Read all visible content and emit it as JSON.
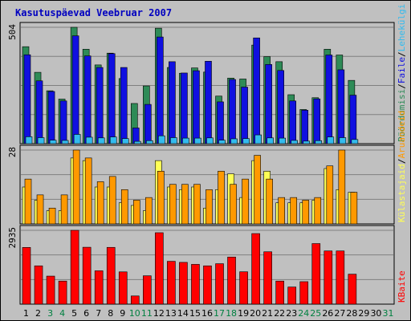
{
  "chart_title": "Kasutuspäevad Veebruar 2007",
  "colors": {
    "background": "#c0c0c0",
    "panel_border": "#000000",
    "grid": "#808080",
    "hits": "#2e8b57",
    "files": "#1010e0",
    "pages": "#33bbee",
    "visits": "#ff9900",
    "sites": "#ffff55",
    "kbytes": "#ff0000",
    "title": "#0000c0",
    "day_default": "#000000",
    "day_weekend": "#008040"
  },
  "chart_data": [
    {
      "type": "bar",
      "categories": [
        "1",
        "2",
        "3",
        "4",
        "5",
        "6",
        "7",
        "8",
        "9",
        "10",
        "11",
        "12",
        "13",
        "14",
        "15",
        "16",
        "17",
        "18",
        "19",
        "20",
        "21",
        "22",
        "23",
        "24",
        "25",
        "26",
        "27",
        "28",
        "29",
        "30",
        "31"
      ],
      "weekend_days": [
        "3",
        "4",
        "10",
        "11",
        "17",
        "18",
        "24",
        "25",
        "31"
      ],
      "ymax_label": "504",
      "ylim": [
        0,
        504
      ],
      "series": [
        {
          "name": "Pöördumisi",
          "color": "#2e8b57",
          "values": [
            420,
            309,
            229,
            193,
            504,
            409,
            341,
            392,
            282,
            174,
            250,
            500,
            330,
            305,
            328,
            310,
            206,
            284,
            280,
            427,
            377,
            355,
            212,
            148,
            199,
            409,
            384,
            274,
            0,
            0,
            0
          ]
        },
        {
          "name": "Faile",
          "color": "#1010e0",
          "values": [
            385,
            272,
            226,
            185,
            467,
            380,
            330,
            390,
            330,
            68,
            170,
            462,
            355,
            306,
            316,
            357,
            181,
            278,
            245,
            458,
            343,
            317,
            185,
            145,
            194,
            384,
            320,
            210,
            0,
            0,
            0
          ]
        },
        {
          "name": "Lehekülgi",
          "color": "#33bbee",
          "values": [
            30,
            26,
            15,
            14,
            40,
            28,
            25,
            29,
            22,
            10,
            13,
            34,
            26,
            24,
            24,
            25,
            15,
            21,
            22,
            38,
            25,
            24,
            14,
            11,
            13,
            29,
            26,
            18,
            0,
            0,
            0
          ]
        }
      ]
    },
    {
      "type": "bar",
      "categories": [
        "1",
        "2",
        "3",
        "4",
        "5",
        "6",
        "7",
        "8",
        "9",
        "10",
        "11",
        "12",
        "13",
        "14",
        "15",
        "16",
        "17",
        "18",
        "19",
        "20",
        "21",
        "22",
        "23",
        "24",
        "25",
        "26",
        "27",
        "28",
        "29",
        "30",
        "31"
      ],
      "ymax_label": "28",
      "ylim": [
        0,
        28
      ],
      "series": [
        {
          "name": "Külastajaid",
          "color": "#ffff55",
          "values": [
            14,
            9,
            5,
            5,
            25,
            24,
            14,
            14,
            8,
            7,
            5,
            24,
            14,
            13,
            14,
            6,
            13,
            19,
            10,
            24,
            20,
            8,
            8,
            8,
            9,
            21,
            13,
            12,
            0,
            0,
            0
          ]
        },
        {
          "name": "Aruandeid",
          "color": "#ff9900",
          "values": [
            17,
            11,
            6,
            11,
            28,
            25,
            16,
            18,
            13,
            9,
            10,
            20,
            15,
            15,
            15,
            13,
            20,
            15,
            17,
            26,
            17,
            10,
            10,
            9,
            10,
            22,
            28,
            12,
            0,
            0,
            0
          ]
        }
      ]
    },
    {
      "type": "bar",
      "categories": [
        "1",
        "2",
        "3",
        "4",
        "5",
        "6",
        "7",
        "8",
        "9",
        "10",
        "11",
        "12",
        "13",
        "14",
        "15",
        "16",
        "17",
        "18",
        "19",
        "20",
        "21",
        "22",
        "23",
        "24",
        "25",
        "26",
        "27",
        "28",
        "29",
        "30",
        "31"
      ],
      "ymax_label": "2935",
      "ylim": [
        0,
        2935
      ],
      "series": [
        {
          "name": "KBaite",
          "color": "#ff0000",
          "values": [
            2255,
            1523,
            1115,
            918,
            2935,
            2262,
            1326,
            2257,
            1283,
            326,
            1128,
            2840,
            1704,
            1661,
            1582,
            1523,
            1608,
            1873,
            1287,
            2806,
            2082,
            918,
            681,
            894,
            2408,
            2115,
            2115,
            1192,
            0,
            0,
            0
          ]
        }
      ]
    }
  ],
  "legend_right": {
    "panel1": [
      {
        "text": "Pöördumisi",
        "color": "#2e8b57"
      },
      {
        "text": "/",
        "color": "#000000"
      },
      {
        "text": "Faile",
        "color": "#1010e0"
      },
      {
        "text": "/",
        "color": "#000000"
      },
      {
        "text": "Lehekülgi",
        "color": "#33bbee"
      }
    ],
    "panel2": [
      {
        "text": "Külastajaid",
        "color": "#ffff55"
      },
      {
        "text": "/",
        "color": "#000000"
      },
      {
        "text": "Aruandeid",
        "color": "#ff9900"
      }
    ],
    "panel3": [
      {
        "text": "KBaite",
        "color": "#ff0000"
      }
    ]
  }
}
